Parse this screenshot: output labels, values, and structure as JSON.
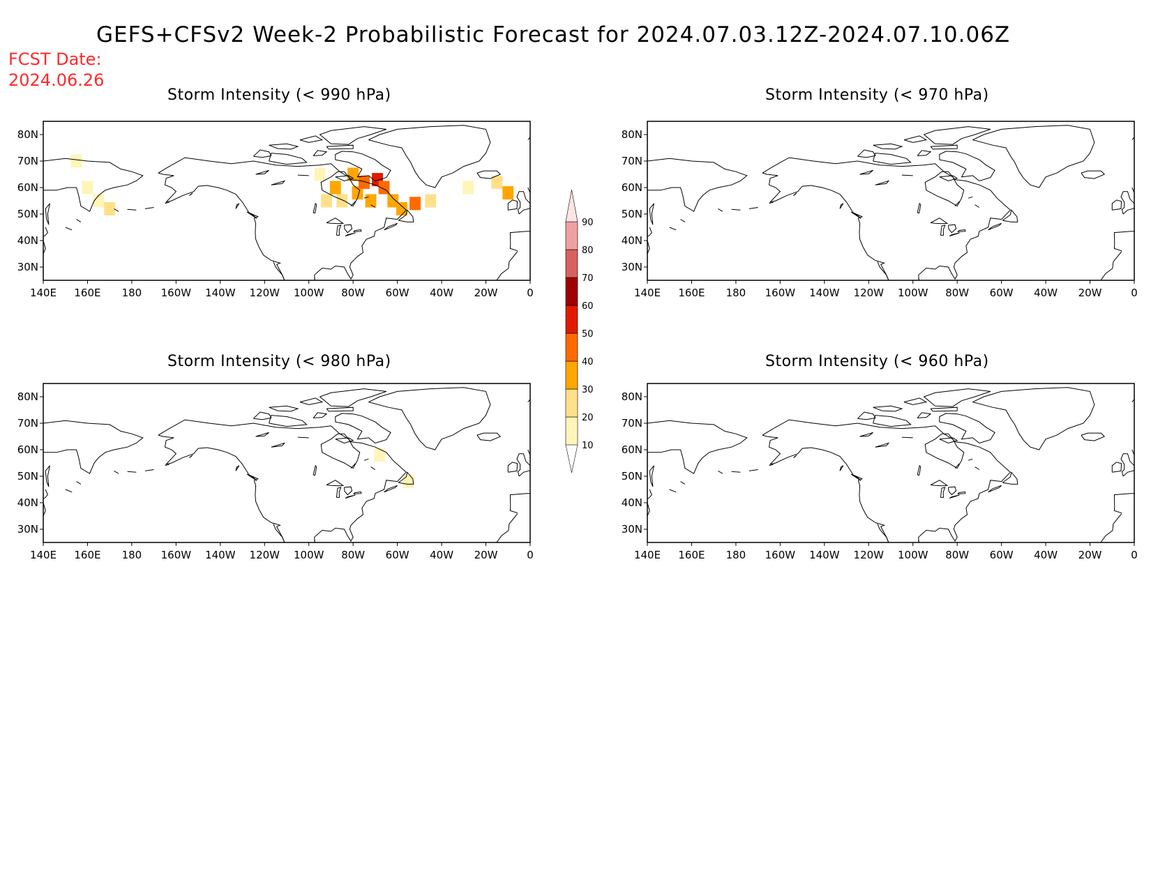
{
  "header": {
    "title": "GEFS+CFSv2 Week-2 Probabilistic Forecast for 2024.07.03.12Z-2024.07.10.06Z",
    "fcst_label": "FCST Date:",
    "fcst_date": "2024.06.26"
  },
  "panels": [
    {
      "title": "Storm Intensity (< 990 hPa)",
      "has_data": true
    },
    {
      "title": "Storm Intensity (< 970 hPa)",
      "has_data": false
    },
    {
      "title": "Storm Intensity (< 980 hPa)",
      "has_data": true
    },
    {
      "title": "Storm Intensity (< 960 hPa)",
      "has_data": false
    }
  ],
  "axes": {
    "lon_labels": [
      "140E",
      "160E",
      "180",
      "160W",
      "140W",
      "120W",
      "100W",
      "80W",
      "60W",
      "40W",
      "20W",
      "0"
    ],
    "lat_labels": [
      "80N",
      "70N",
      "60N",
      "50N",
      "40N",
      "30N"
    ]
  },
  "colorbar": {
    "labels": [
      "10",
      "20",
      "30",
      "40",
      "50",
      "60",
      "70",
      "80",
      "90"
    ],
    "colors": [
      "#fff5b8",
      "#ffe08a",
      "#ffa600",
      "#ff6a00",
      "#e01a00",
      "#a00000",
      "#d96060",
      "#f0a0a0",
      "#ffe4e4"
    ]
  },
  "chart_data": {
    "type": "heatmap",
    "units": "probability (%)",
    "cells_990": [
      {
        "lon": -205,
        "lat": 70,
        "p": 15
      },
      {
        "lon": -200,
        "lat": 60,
        "p": 15
      },
      {
        "lon": -195,
        "lat": 55,
        "p": 15
      },
      {
        "lon": -190,
        "lat": 52,
        "p": 25
      },
      {
        "lon": -95,
        "lat": 65,
        "p": 15
      },
      {
        "lon": -92,
        "lat": 55,
        "p": 25
      },
      {
        "lon": -88,
        "lat": 60,
        "p": 30
      },
      {
        "lon": -85,
        "lat": 55,
        "p": 25
      },
      {
        "lon": -80,
        "lat": 65,
        "p": 30
      },
      {
        "lon": -78,
        "lat": 58,
        "p": 35
      },
      {
        "lon": -75,
        "lat": 62,
        "p": 40
      },
      {
        "lon": -72,
        "lat": 55,
        "p": 35
      },
      {
        "lon": -69,
        "lat": 63,
        "p": 55
      },
      {
        "lon": -66,
        "lat": 60,
        "p": 45
      },
      {
        "lon": -62,
        "lat": 55,
        "p": 30
      },
      {
        "lon": -58,
        "lat": 52,
        "p": 35
      },
      {
        "lon": -52,
        "lat": 54,
        "p": 45
      },
      {
        "lon": -45,
        "lat": 55,
        "p": 25
      },
      {
        "lon": -28,
        "lat": 60,
        "p": 15
      },
      {
        "lon": -15,
        "lat": 62,
        "p": 20
      },
      {
        "lon": -10,
        "lat": 58,
        "p": 35
      }
    ],
    "cells_980": [
      {
        "lon": -68,
        "lat": 58,
        "p": 15
      },
      {
        "lon": -55,
        "lat": 48,
        "p": 15
      }
    ]
  }
}
